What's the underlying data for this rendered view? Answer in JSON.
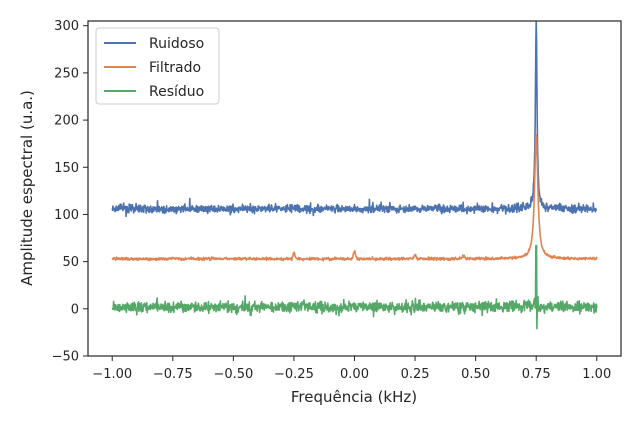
{
  "chart_data": {
    "type": "line",
    "title": "",
    "xlabel": "Frequência (kHz)",
    "ylabel": "Amplitude espectral (u.a.)",
    "xlim": [
      -1.1,
      1.1
    ],
    "ylim": [
      -50,
      305
    ],
    "xticks": [
      -1.0,
      -0.75,
      -0.5,
      -0.25,
      0.0,
      0.25,
      0.5,
      0.75,
      1.0
    ],
    "xtick_labels": [
      "−1.00",
      "−0.75",
      "−0.50",
      "−0.25",
      "0.00",
      "0.25",
      "0.50",
      "0.75",
      "1.00"
    ],
    "yticks": [
      -50,
      0,
      50,
      100,
      150,
      200,
      250,
      300
    ],
    "ytick_labels": [
      "−50",
      "0",
      "50",
      "100",
      "150",
      "200",
      "250",
      "300"
    ],
    "grid": false,
    "legend_position": "top-left",
    "x_range": [
      -1.0,
      1.0
    ],
    "peak_x": 0.75,
    "series": [
      {
        "name": "Ruidoso",
        "color": "#4c72b0",
        "baseline": 106,
        "noise_amplitude": 3,
        "peak_value": 305,
        "peak_width": 0.004,
        "points": [
          [
            -1.0,
            107
          ],
          [
            -0.75,
            106
          ],
          [
            -0.5,
            107
          ],
          [
            -0.25,
            106
          ],
          [
            0.0,
            106
          ],
          [
            0.25,
            106
          ],
          [
            0.5,
            106
          ],
          [
            0.7,
            108
          ],
          [
            0.75,
            305
          ],
          [
            0.8,
            106
          ],
          [
            1.0,
            105
          ]
        ]
      },
      {
        "name": "Filtrado",
        "color": "#dd8452",
        "baseline": 53,
        "noise_amplitude": 1,
        "peak_value": 185,
        "peak_width": 0.008,
        "bumps": [
          [
            -0.25,
            59
          ],
          [
            0.0,
            61
          ],
          [
            0.25,
            57
          ],
          [
            0.45,
            56
          ]
        ],
        "points": [
          [
            -1.0,
            53
          ],
          [
            -0.75,
            53
          ],
          [
            -0.5,
            53
          ],
          [
            -0.25,
            59
          ],
          [
            0.0,
            61
          ],
          [
            0.25,
            57
          ],
          [
            0.5,
            53
          ],
          [
            0.7,
            57
          ],
          [
            0.75,
            185
          ],
          [
            0.8,
            54
          ],
          [
            1.0,
            53
          ]
        ]
      },
      {
        "name": "Resíduo",
        "color": "#55a868",
        "baseline": 2,
        "noise_amplitude": 4,
        "spike_max": 67,
        "spike_min": -21,
        "points": [
          [
            -1.0,
            2
          ],
          [
            -0.75,
            1
          ],
          [
            -0.5,
            2
          ],
          [
            -0.25,
            -6
          ],
          [
            0.0,
            3
          ],
          [
            0.25,
            2
          ],
          [
            0.5,
            2
          ],
          [
            0.75,
            67
          ],
          [
            0.752,
            -21
          ],
          [
            0.8,
            2
          ],
          [
            1.0,
            1
          ]
        ]
      }
    ]
  }
}
